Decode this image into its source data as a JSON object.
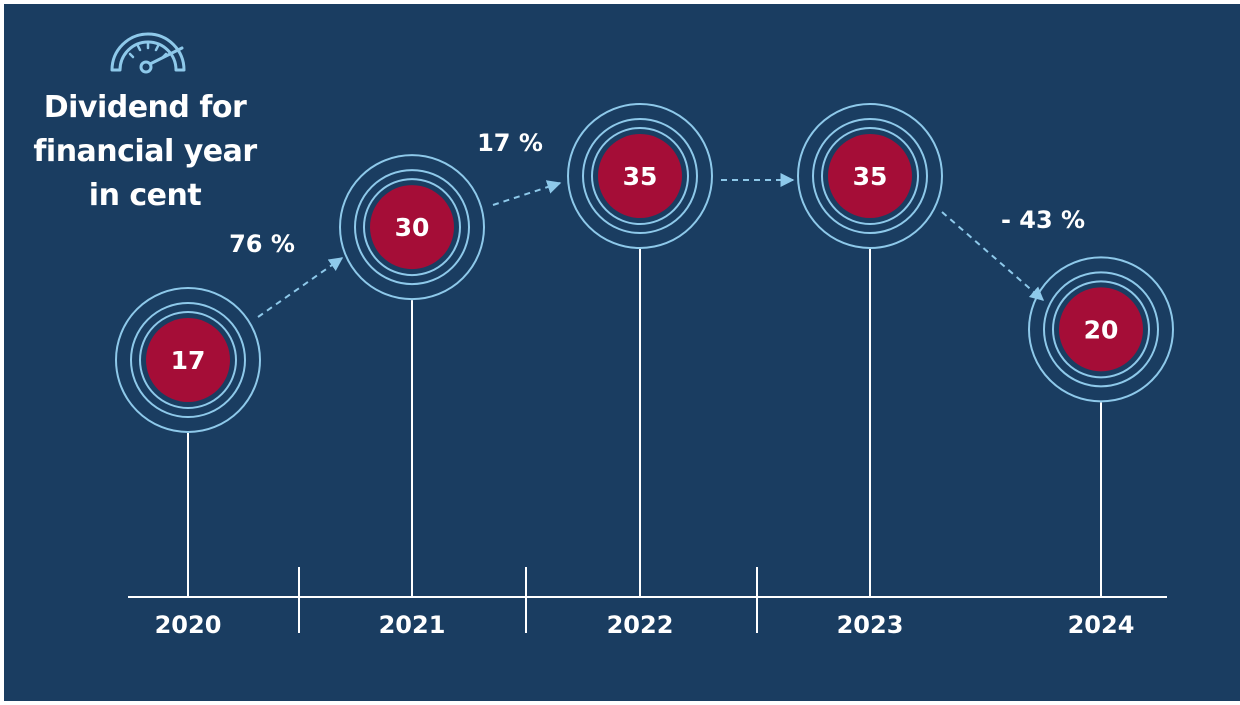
{
  "title": "Dividend for financial year in cent",
  "title_lines": [
    "Dividend for",
    "financial year",
    "in cent"
  ],
  "icon": "speedometer-icon",
  "colors": {
    "background": "#1a3d61",
    "circle_fill": "#a50d37",
    "ring": "#8ec9ea",
    "text": "#ffffff"
  },
  "chart_data": {
    "type": "line",
    "title": "Dividend for financial year in cent",
    "x": [
      "2020",
      "2021",
      "2022",
      "2023",
      "2024"
    ],
    "series": [
      {
        "values": [
          17,
          30,
          35,
          35,
          20
        ]
      }
    ],
    "changes": [
      {
        "from": "2020",
        "to": "2021",
        "label": "76 %"
      },
      {
        "from": "2021",
        "to": "2022",
        "label": "17 %"
      },
      {
        "from": "2022",
        "to": "2023",
        "label": ""
      },
      {
        "from": "2023",
        "to": "2024",
        "label": "- 43 %"
      }
    ],
    "xlabel": "",
    "ylabel": "",
    "grid": false
  }
}
